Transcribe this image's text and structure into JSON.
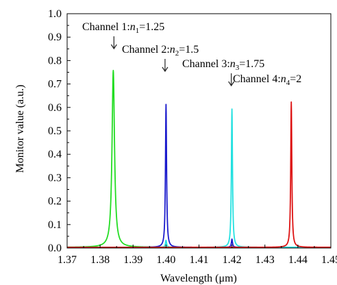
{
  "chart_data": {
    "type": "line",
    "xlabel": "Wavelength (μm)",
    "ylabel": "Monitor value (a.u.)",
    "xlim": [
      1.37,
      1.45
    ],
    "ylim": [
      0.0,
      1.0
    ],
    "xticks": [
      "1.37",
      "1.38",
      "1.39",
      "1.40",
      "1.41",
      "1.42",
      "1.43",
      "1.44",
      "1.45"
    ],
    "yticks": [
      "0.0",
      "0.1",
      "0.2",
      "0.3",
      "0.4",
      "0.5",
      "0.6",
      "0.7",
      "0.8",
      "0.9",
      "1.0"
    ],
    "grid": false,
    "legend": "none",
    "series": [
      {
        "color": "#22dd22",
        "peaks": [
          {
            "x": 1.384,
            "y": 0.755,
            "w": 0.00045
          }
        ]
      },
      {
        "color": "#1a1acc",
        "peaks": [
          {
            "x": 1.4,
            "y": 0.61,
            "w": 0.0002
          },
          {
            "x": 1.42,
            "y": 0.035,
            "w": 0.0002
          }
        ]
      },
      {
        "color": "#22e0e0",
        "peaks": [
          {
            "x": 1.42,
            "y": 0.59,
            "w": 0.0002
          },
          {
            "x": 1.4,
            "y": 0.03,
            "w": 0.0002
          }
        ]
      },
      {
        "color": "#dd1111",
        "peaks": [
          {
            "x": 1.438,
            "y": 0.62,
            "w": 0.0002
          }
        ]
      }
    ],
    "annotations": [
      {
        "prefix": "Channel 1:",
        "var": "n",
        "sub": "1",
        "suffix": "=1.25",
        "arrow_x": 1.3842,
        "arrow_y0": 0.865,
        "arrow_y1": 0.8
      },
      {
        "prefix": "Channel 2:",
        "var": "n",
        "sub": "2",
        "suffix": "=1.5",
        "arrow_x": 1.3997,
        "arrow_y0": 0.8,
        "arrow_y1": 0.74
      },
      {
        "prefix": "Channel 3:",
        "var": "n",
        "sub": "3",
        "suffix": "=1.75",
        "arrow_x": 1.4198,
        "arrow_y0": 0.685,
        "arrow_y1": 0.625
      },
      {
        "prefix": "Channel 4:",
        "var": "n",
        "sub": "4",
        "suffix": "=2",
        "arrow_x": 1.4378,
        "arrow_y0": 0.625,
        "arrow_y1": 0.625
      }
    ]
  }
}
